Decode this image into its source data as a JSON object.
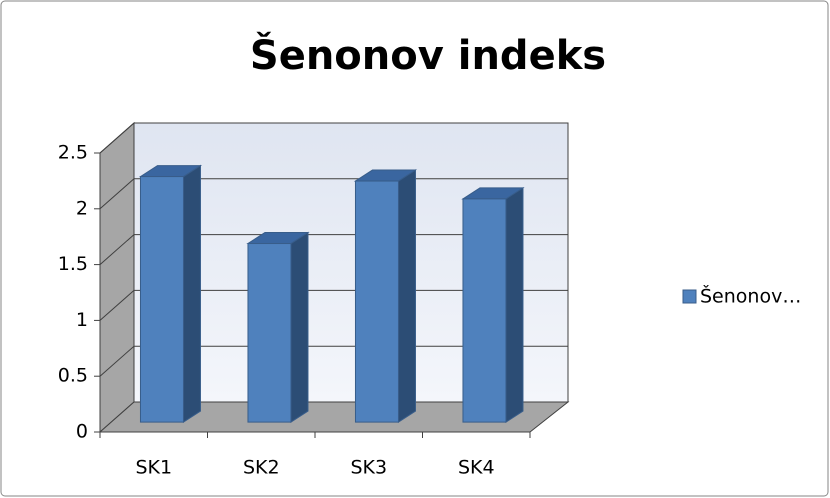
{
  "chart_data": {
    "type": "bar3d",
    "title": "Šenonov indeks",
    "categories": [
      "SK1",
      "SK2",
      "SK3",
      "SK4"
    ],
    "series": [
      {
        "name": "Šenonov…",
        "color": "#4f81bd",
        "values": [
          2.2,
          1.6,
          2.16,
          2.0
        ]
      }
    ],
    "ylim": [
      0,
      2.5
    ],
    "yticks": [
      0,
      0.5,
      1,
      1.5,
      2,
      2.5
    ],
    "grid": true,
    "legend": "right"
  }
}
